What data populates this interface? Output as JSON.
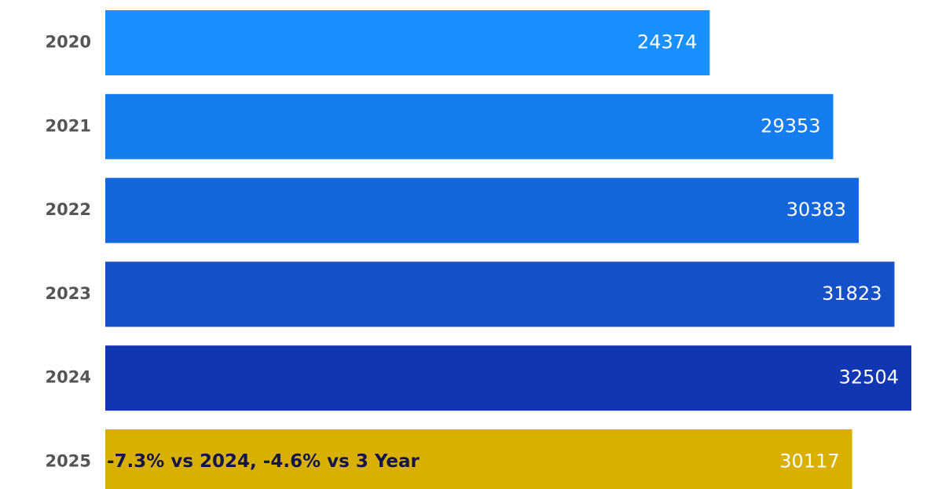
{
  "chart_data": {
    "type": "bar",
    "orientation": "horizontal",
    "categories": [
      "2020",
      "2021",
      "2022",
      "2023",
      "2024",
      "2025"
    ],
    "values": [
      24374,
      29353,
      30383,
      31823,
      32504,
      30117
    ],
    "colors": [
      "#1890ff",
      "#167df0",
      "#1466dc",
      "#1450c8",
      "#1236b2",
      "#d9b000"
    ],
    "annotation": "-7.3% vs 2024, -4.6% vs 3 Year"
  }
}
